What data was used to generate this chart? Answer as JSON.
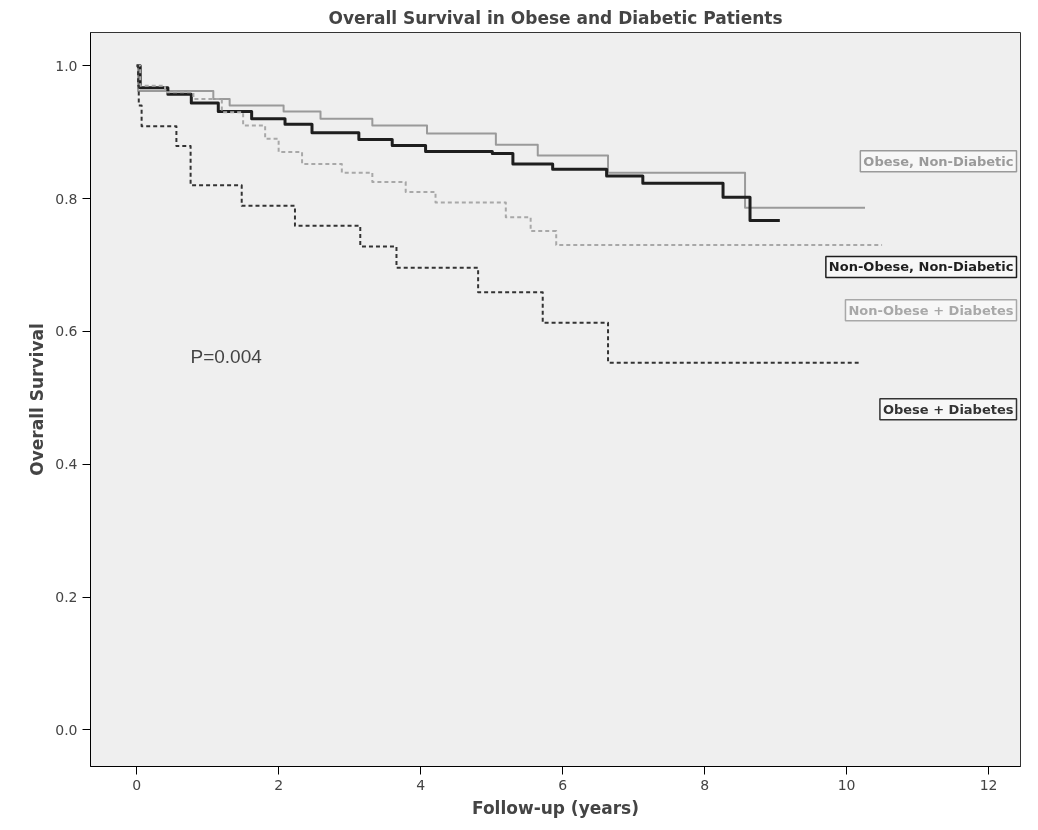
{
  "chart_data": {
    "type": "step",
    "title": "Overall Survival in Obese and Diabetic Patients",
    "xlabel": "Follow-up (years)",
    "ylabel": "Overall Survival",
    "annotations": [
      "P=0.004"
    ],
    "xlim": [
      -0.65,
      12.45
    ],
    "xticks": [
      0,
      2,
      4,
      6,
      8,
      10,
      12
    ],
    "ylim": [
      -0.055,
      1.05
    ],
    "yticks": [
      {
        "value": 0,
        "label": "0.0"
      },
      {
        "value": 0.2,
        "label": "0.2"
      },
      {
        "value": 0.4,
        "label": "0.4"
      },
      {
        "value": 0.6,
        "label": "0.6"
      },
      {
        "value": 0.8,
        "label": "0.8"
      },
      {
        "value": 1,
        "label": "1.0"
      }
    ],
    "grid": false,
    "series": [
      {
        "name": "Obese, Non-Diabetic",
        "color": "#9a9a9a",
        "line_style": "solid",
        "x": [
          0,
          0.02,
          1.08,
          1.31,
          2.07,
          2.59,
          3.32,
          4.09,
          5.06,
          5.65,
          6.64,
          8.57,
          10.26
        ],
        "values": [
          1.0,
          0.962,
          0.95,
          0.94,
          0.931,
          0.92,
          0.91,
          0.898,
          0.881,
          0.865,
          0.839,
          0.786,
          0.786
        ]
      },
      {
        "name": "Non-Obese, Non-Diabetic",
        "color": "#1e1e1e",
        "line_style": "solid",
        "x": [
          0,
          0.05,
          0.44,
          0.77,
          1.15,
          1.62,
          2.09,
          2.47,
          3.13,
          3.6,
          4.07,
          5.01,
          5.3,
          5.86,
          6.62,
          7.13,
          8.26,
          8.64,
          9.06
        ],
        "values": [
          1.0,
          0.967,
          0.957,
          0.944,
          0.931,
          0.92,
          0.912,
          0.899,
          0.889,
          0.88,
          0.871,
          0.868,
          0.852,
          0.844,
          0.834,
          0.823,
          0.802,
          0.767,
          0.767
        ]
      },
      {
        "name": "Non-Obese + Diabetes",
        "color": "#a8a8a8",
        "line_style": "dashed",
        "x": [
          0,
          0.05,
          0.4,
          0.8,
          1.2,
          1.5,
          1.81,
          2.0,
          2.33,
          2.89,
          3.32,
          3.79,
          4.21,
          5.2,
          5.55,
          5.91,
          10.5
        ],
        "values": [
          1.0,
          0.97,
          0.96,
          0.95,
          0.93,
          0.91,
          0.89,
          0.87,
          0.852,
          0.839,
          0.825,
          0.81,
          0.794,
          0.772,
          0.751,
          0.73,
          0.73
        ]
      },
      {
        "name": "Obese + Diabetes",
        "color": "#333333",
        "line_style": "dashed",
        "x": [
          0,
          0.02,
          0.03,
          0.07,
          0.56,
          0.76,
          1.48,
          2.23,
          3.15,
          3.66,
          4.81,
          5.72,
          6.64,
          10.17
        ],
        "values": [
          1.0,
          0.97,
          0.94,
          0.909,
          0.879,
          0.82,
          0.789,
          0.759,
          0.728,
          0.696,
          0.659,
          0.613,
          0.553,
          0.553
        ]
      }
    ]
  }
}
